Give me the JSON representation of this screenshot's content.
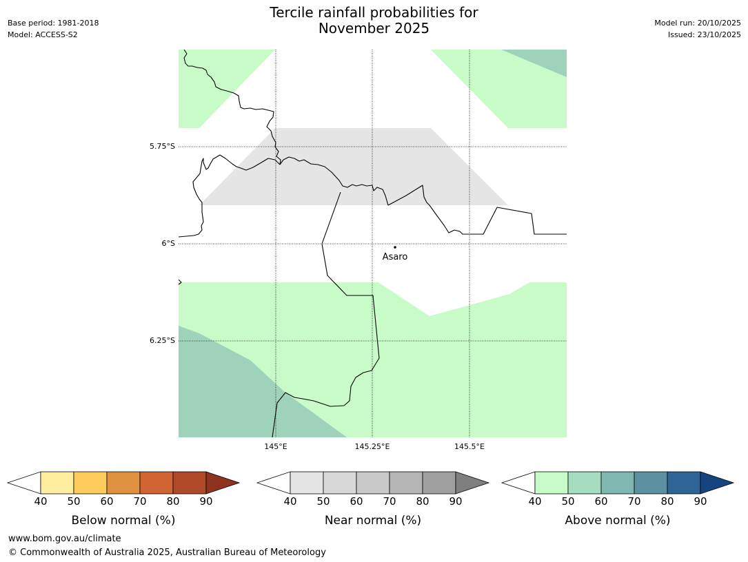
{
  "title_line1": "Tercile rainfall probabilities for",
  "title_line2": "November 2025",
  "meta": {
    "base_period": "Base period: 1981-2018",
    "model": "Model: ACCESS-S2",
    "model_run": "Model run: 20/10/2025",
    "issued": "Issued: 23/10/2025"
  },
  "map": {
    "lat_labels": [
      "5.75°S",
      "6°S",
      "6.25°S"
    ],
    "lon_labels": [
      "145°E",
      "145.25°E",
      "145.5°E"
    ],
    "place": "Asaro",
    "colors": {
      "above_40": "#c9fbc9",
      "above_50": "#9ed2bb",
      "near_40": "#e5e5e5",
      "coast": "#000000"
    }
  },
  "legends": [
    {
      "label": "Below normal (%)",
      "ticks": [
        "40",
        "50",
        "60",
        "70",
        "80",
        "90"
      ],
      "colors": [
        "#ffeda0",
        "#fecc5c",
        "#e0913f",
        "#cf6332",
        "#b14a28",
        "#8f321f"
      ]
    },
    {
      "label": "Near normal (%)",
      "ticks": [
        "40",
        "50",
        "60",
        "70",
        "80",
        "90"
      ],
      "colors": [
        "#e5e5e5",
        "#d8d8d8",
        "#c8c8c8",
        "#b5b5b5",
        "#9f9f9f",
        "#7f7f7f"
      ]
    },
    {
      "label": "Above normal (%)",
      "ticks": [
        "40",
        "50",
        "60",
        "70",
        "80",
        "90"
      ],
      "colors": [
        "#c9fbc9",
        "#a6dcbf",
        "#7fb8b0",
        "#5b91a1",
        "#2f6496",
        "#16447e"
      ]
    }
  ],
  "footer": {
    "url": "www.bom.gov.au/climate",
    "copyright": "© Commonwealth of Australia 2025, Australian Bureau of Meteorology"
  }
}
